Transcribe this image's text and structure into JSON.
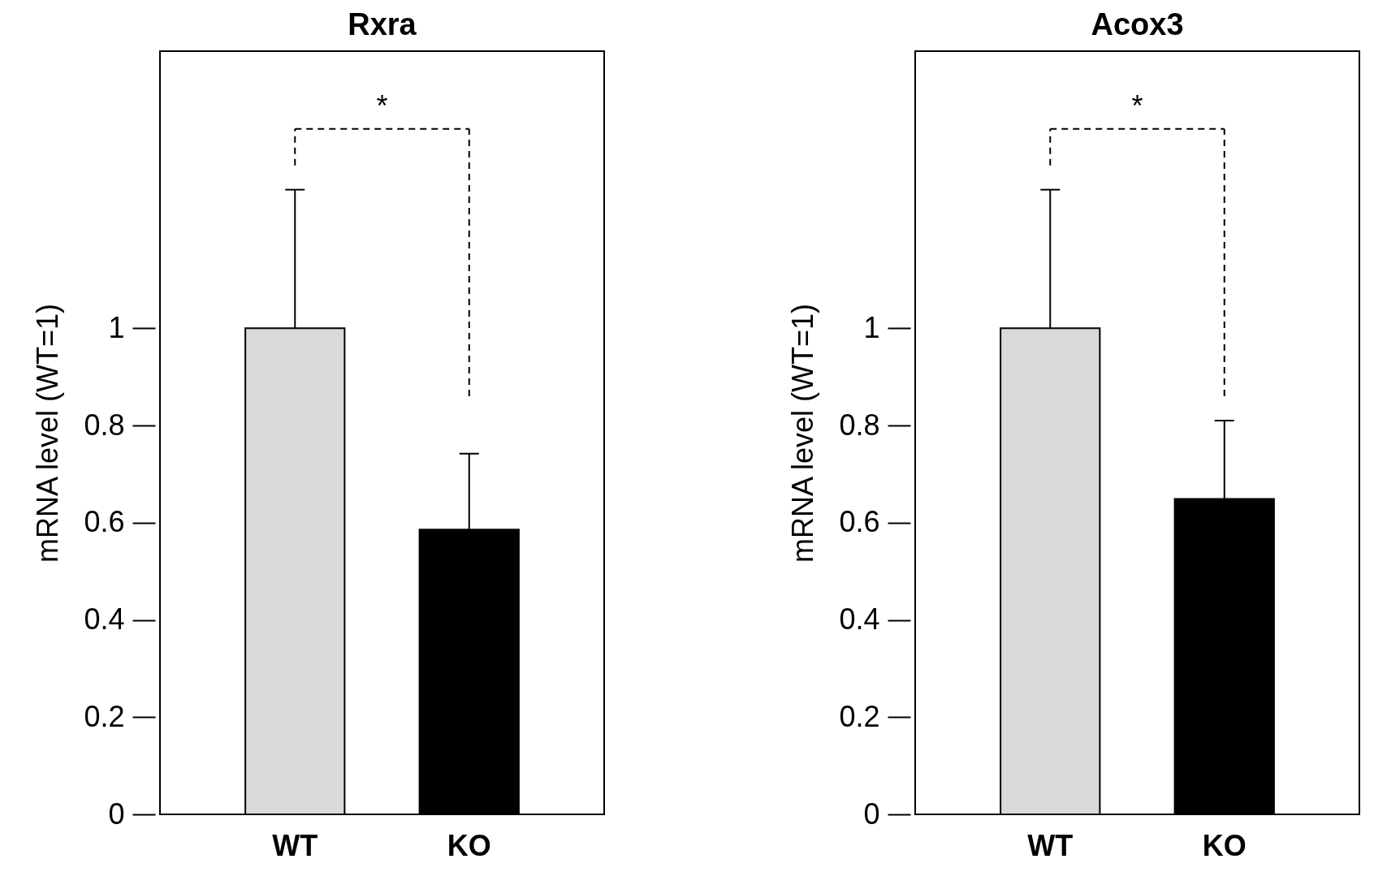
{
  "chart_data": [
    {
      "type": "bar",
      "title": "Rxra",
      "ylabel": "mRNA level (WT=1)",
      "categories": [
        "WT",
        "KO"
      ],
      "values": [
        1,
        0.586
      ],
      "colors": [
        "#d9d9d9",
        "#000000"
      ],
      "errors": [
        [
          1,
          1.285
        ],
        [
          0.586,
          0.742
        ]
      ],
      "ylim": [
        0,
        1.57
      ],
      "yticks": [
        0,
        0.2,
        0.4,
        0.6,
        0.8,
        1
      ],
      "grid": false,
      "annotations": [
        "*"
      ]
    },
    {
      "type": "bar",
      "title": "Acox3",
      "ylabel": "mRNA level (WT=1)",
      "categories": [
        "WT",
        "KO"
      ],
      "values": [
        1,
        0.649
      ],
      "colors": [
        "#d9d9d9",
        "#000000"
      ],
      "errors": [
        [
          1,
          1.285
        ],
        [
          0.649,
          0.81
        ]
      ],
      "ylim": [
        0,
        1.57
      ],
      "yticks": [
        0,
        0.2,
        0.4,
        0.6,
        0.8,
        1
      ],
      "grid": false,
      "annotations": [
        "*"
      ]
    }
  ]
}
